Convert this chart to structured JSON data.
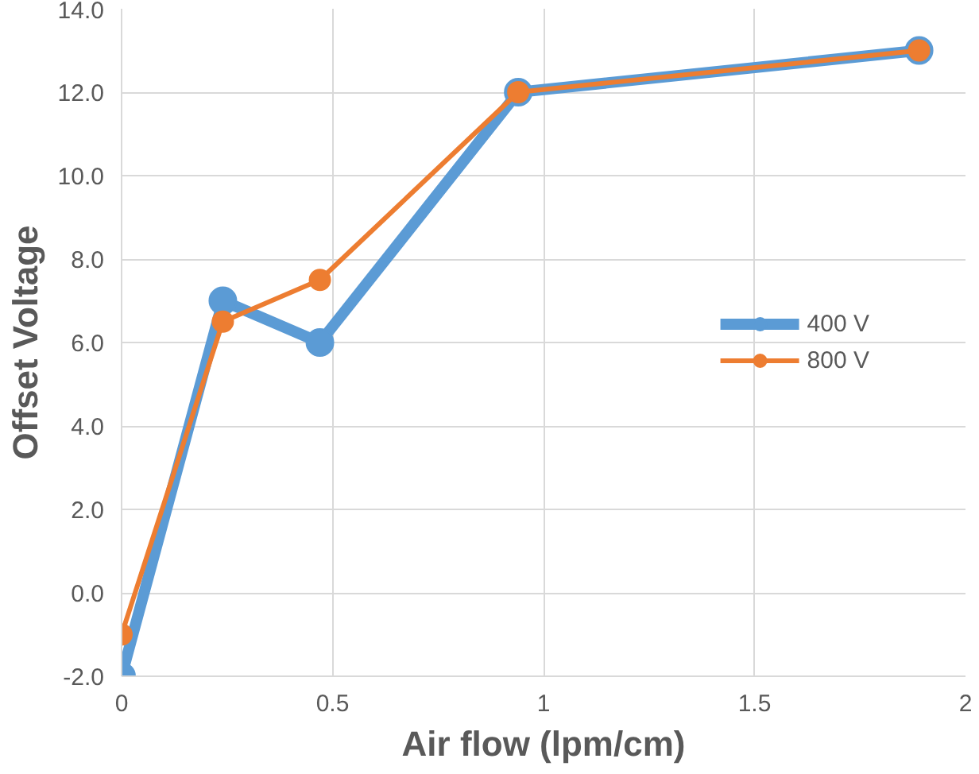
{
  "chart_data": {
    "type": "line",
    "xlabel": "Air flow (lpm/cm)",
    "ylabel": "Offset Voltage",
    "xlim": [
      0,
      2
    ],
    "xticks": [
      0,
      0.5,
      1,
      1.5,
      2
    ],
    "ylim": [
      -2,
      14
    ],
    "yticks": [
      {
        "value": -2,
        "label": "-2.0"
      },
      {
        "value": 0,
        "label": "0.0"
      },
      {
        "value": 2,
        "label": "2.0"
      },
      {
        "value": 4,
        "label": "4.0"
      },
      {
        "value": 6,
        "label": "6.0"
      },
      {
        "value": 8,
        "label": "8.0"
      },
      {
        "value": 10,
        "label": "10.0"
      },
      {
        "value": 12,
        "label": "12.0"
      },
      {
        "value": 14,
        "label": "14.0"
      }
    ],
    "grid": true,
    "legend": "right",
    "marker": "circle",
    "line_style": "solid",
    "series": [
      {
        "name": "400 V",
        "color": "#5b9bd5",
        "x": [
          0,
          0.24,
          0.47,
          0.94,
          1.89
        ],
        "values": [
          -2,
          7,
          6,
          12,
          13
        ]
      },
      {
        "name": "800 V",
        "color": "#ed7d31",
        "x": [
          0,
          0.24,
          0.47,
          0.94,
          1.89
        ],
        "values": [
          -1,
          6.5,
          7.5,
          12,
          13
        ]
      }
    ]
  }
}
